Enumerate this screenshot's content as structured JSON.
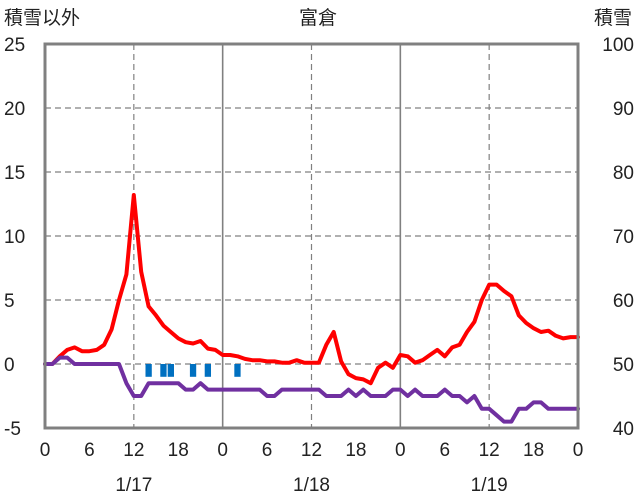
{
  "chart_data": {
    "type": "line",
    "title": "富倉",
    "left_axis_label": "積雪以外",
    "right_axis_label": "積雪",
    "left_ylim": [
      -5,
      25
    ],
    "left_yticks": [
      "-5",
      "0",
      "5",
      "10",
      "15",
      "20",
      "25"
    ],
    "right_ylim": [
      40,
      100
    ],
    "right_yticks": [
      "40",
      "50",
      "60",
      "70",
      "80",
      "90",
      "100"
    ],
    "xlim": [
      0,
      72
    ],
    "x_tick_labels": [
      "0",
      "6",
      "12",
      "18",
      "0",
      "6",
      "12",
      "18",
      "0",
      "6",
      "12",
      "18",
      "0"
    ],
    "date_labels": [
      {
        "label": "1/17",
        "x": 12
      },
      {
        "label": "1/18",
        "x": 36
      },
      {
        "label": "1/19",
        "x": 60
      }
    ],
    "day_separators": [
      24,
      48
    ],
    "noon_markers": [
      12,
      36,
      60
    ],
    "grid": true,
    "colors": {
      "temperature": "#ff0000",
      "snow_depth": "#7030a0",
      "precipitation": "#0070c0",
      "grid": "#808080",
      "frame": "#808080"
    },
    "series": [
      {
        "key": "temperature",
        "axis": "left",
        "x": [
          0,
          1,
          2,
          3,
          4,
          5,
          6,
          7,
          8,
          9,
          10,
          11,
          12,
          13,
          14,
          15,
          16,
          17,
          18,
          19,
          20,
          21,
          22,
          23,
          24,
          25,
          26,
          27,
          28,
          29,
          30,
          31,
          32,
          33,
          34,
          35,
          36,
          37,
          38,
          39,
          40,
          41,
          42,
          43,
          44,
          45,
          46,
          47,
          48,
          49,
          50,
          51,
          52,
          53,
          54,
          55,
          56,
          57,
          58,
          59,
          60,
          61,
          62,
          63,
          64,
          65,
          66,
          67,
          68,
          69,
          70,
          71,
          72
        ],
        "y": [
          0,
          0,
          0.6,
          1.1,
          1.3,
          1.0,
          1.0,
          1.1,
          1.5,
          2.7,
          5.0,
          7.0,
          13.2,
          7.2,
          4.5,
          3.8,
          3.0,
          2.5,
          2.0,
          1.7,
          1.6,
          1.8,
          1.2,
          1.1,
          0.7,
          0.7,
          0.6,
          0.4,
          0.3,
          0.3,
          0.2,
          0.2,
          0.1,
          0.1,
          0.3,
          0.1,
          0.1,
          0.1,
          1.5,
          2.5,
          0.2,
          -0.8,
          -1.1,
          -1.2,
          -1.5,
          -0.3,
          0.1,
          -0.3,
          0.7,
          0.6,
          0.1,
          0.3,
          0.7,
          1.1,
          0.6,
          1.3,
          1.5,
          2.5,
          3.3,
          5.0,
          6.2,
          6.2,
          5.7,
          5.3,
          3.8,
          3.2,
          2.8,
          2.5,
          2.6,
          2.2,
          2.0,
          2.1,
          2.1
        ]
      },
      {
        "key": "snow_depth",
        "axis": "right",
        "x": [
          0,
          1,
          2,
          3,
          4,
          5,
          6,
          7,
          8,
          9,
          10,
          11,
          12,
          13,
          14,
          15,
          16,
          17,
          18,
          19,
          20,
          21,
          22,
          23,
          24,
          25,
          26,
          27,
          28,
          29,
          30,
          31,
          32,
          33,
          34,
          35,
          36,
          37,
          38,
          39,
          40,
          41,
          42,
          43,
          44,
          45,
          46,
          47,
          48,
          49,
          50,
          51,
          52,
          53,
          54,
          55,
          56,
          57,
          58,
          59,
          60,
          61,
          62,
          63,
          64,
          65,
          66,
          67,
          68,
          69,
          70,
          71,
          72
        ],
        "y": [
          50,
          50,
          51,
          51,
          50,
          50,
          50,
          50,
          50,
          50,
          50,
          47,
          45,
          45,
          47,
          47,
          47,
          47,
          47,
          46,
          46,
          47,
          46,
          46,
          46,
          46,
          46,
          46,
          46,
          46,
          45,
          45,
          46,
          46,
          46,
          46,
          46,
          46,
          45,
          45,
          45,
          46,
          45,
          46,
          45,
          45,
          45,
          46,
          46,
          45,
          46,
          45,
          45,
          45,
          46,
          45,
          45,
          44,
          45,
          43,
          43,
          42,
          41,
          41,
          43,
          43,
          44,
          44,
          43,
          43,
          43,
          43,
          43
        ]
      },
      {
        "key": "precipitation",
        "axis": "left",
        "type": "bar",
        "x": [
          14,
          16,
          17,
          20,
          22,
          26
        ],
        "y": [
          -1,
          -1,
          -1,
          -1,
          -1,
          -1
        ]
      }
    ]
  }
}
